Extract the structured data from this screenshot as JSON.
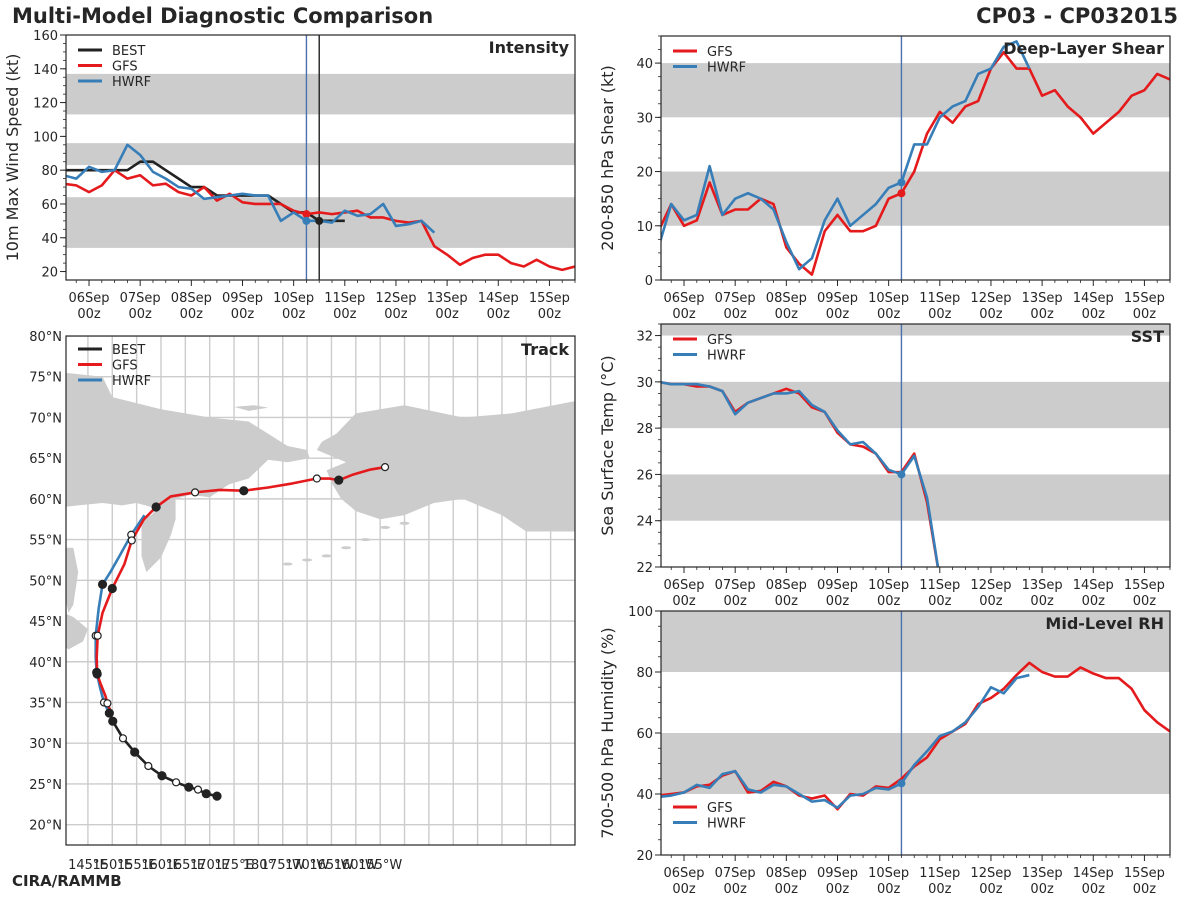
{
  "header": {
    "title": "Multi-Model Diagnostic Comparison",
    "storm_id": "CP03 - CP032015",
    "credit": "CIRA/RAMMB"
  },
  "colors": {
    "BEST": "#222222",
    "GFS": "#e41a1c",
    "HWRF": "#377eb8",
    "band": "#cccccc",
    "land": "#cccccc",
    "grid": "#cccccc"
  },
  "chart_data": [
    {
      "id": "intensity",
      "type": "line",
      "title": "Intensity",
      "ylabel": "10m Max Wind Speed (kt)",
      "xlabel": "",
      "ylim": [
        15,
        160
      ],
      "yticks": [
        20,
        40,
        60,
        80,
        100,
        120,
        140,
        160
      ],
      "bands": [
        [
          34,
          64
        ],
        [
          83,
          96
        ],
        [
          113,
          137
        ]
      ],
      "x_tick_labels": [
        [
          "06Sep",
          "00z"
        ],
        [
          "07Sep",
          "00z"
        ],
        [
          "08Sep",
          "00z"
        ],
        [
          "09Sep",
          "00z"
        ],
        [
          "10Sep",
          "00z"
        ],
        [
          "11Sep",
          "00z"
        ],
        [
          "12Sep",
          "00z"
        ],
        [
          "13Sep",
          "00z"
        ],
        [
          "14Sep",
          "00z"
        ],
        [
          "15Sep",
          "00z"
        ]
      ],
      "x_start": "05Sep 12z",
      "x_step_hours": 6,
      "vlines": [
        {
          "series": "HWRF",
          "at": "10Sep 06z"
        },
        {
          "series": "BEST",
          "at": "10Sep 12z"
        }
      ],
      "legend": [
        "BEST",
        "GFS",
        "HWRF"
      ],
      "legend_position": "top-left",
      "series": [
        {
          "name": "BEST",
          "values": [
            80,
            80,
            80,
            80,
            80,
            80,
            85,
            85,
            80,
            75,
            70,
            70,
            65,
            65,
            65,
            65,
            65,
            60,
            55,
            55,
            50,
            50,
            50
          ]
        },
        {
          "name": "GFS",
          "values": [
            72,
            71,
            67,
            71,
            80,
            75,
            77,
            71,
            72,
            67,
            65,
            70,
            62,
            66,
            61,
            60,
            60,
            60,
            56,
            54,
            55,
            54,
            55,
            56,
            52,
            52,
            50,
            49,
            50,
            35,
            30,
            24,
            28,
            30,
            30,
            25,
            23,
            27,
            23,
            21,
            23
          ]
        },
        {
          "name": "HWRF",
          "values": [
            77,
            75,
            82,
            79,
            80,
            95,
            89,
            79,
            75,
            70,
            69,
            63,
            64,
            65,
            66,
            65,
            65,
            50,
            55,
            50,
            50,
            49,
            56,
            53,
            54,
            60,
            47,
            48,
            50,
            43
          ]
        }
      ]
    },
    {
      "id": "shear",
      "type": "line",
      "title": "Deep-Layer Shear",
      "ylabel": "200-850 hPa Shear (kt)",
      "xlabel": "",
      "ylim": [
        0,
        45
      ],
      "yticks": [
        0,
        10,
        20,
        30,
        40
      ],
      "bands": [
        [
          10,
          20
        ],
        [
          30,
          40
        ]
      ],
      "x_tick_labels": [
        [
          "06Sep",
          "00z"
        ],
        [
          "07Sep",
          "00z"
        ],
        [
          "08Sep",
          "00z"
        ],
        [
          "09Sep",
          "00z"
        ],
        [
          "10Sep",
          "00z"
        ],
        [
          "11Sep",
          "00z"
        ],
        [
          "12Sep",
          "00z"
        ],
        [
          "13Sep",
          "00z"
        ],
        [
          "14Sep",
          "00z"
        ],
        [
          "15Sep",
          "00z"
        ]
      ],
      "x_start": "05Sep 12z",
      "x_step_hours": 6,
      "vlines": [
        {
          "series": "HWRF",
          "at": "10Sep 06z"
        }
      ],
      "legend": [
        "GFS",
        "HWRF"
      ],
      "legend_position": "top-left",
      "series": [
        {
          "name": "GFS",
          "values": [
            9,
            14,
            10,
            11,
            18,
            12,
            13,
            13,
            15,
            14,
            6,
            3,
            1,
            9,
            12,
            9,
            9,
            10,
            15,
            16,
            20,
            27,
            31,
            29,
            32,
            33,
            39,
            42,
            39,
            39,
            34,
            35,
            32,
            30,
            27,
            29,
            31,
            34,
            35,
            38,
            37
          ]
        },
        {
          "name": "HWRF",
          "values": [
            6,
            14,
            11,
            12,
            21,
            12,
            15,
            16,
            15,
            13,
            7,
            2,
            4,
            11,
            15,
            10,
            12,
            14,
            17,
            18,
            25,
            25,
            30,
            32,
            33,
            38,
            39,
            43,
            44,
            39
          ]
        }
      ]
    },
    {
      "id": "sst",
      "type": "line",
      "title": "SST",
      "ylabel": "Sea Surface Temp (°C)",
      "xlabel": "",
      "ylim": [
        22,
        32.5
      ],
      "yticks": [
        22,
        24,
        26,
        28,
        30,
        32
      ],
      "bands": [
        [
          24,
          26
        ],
        [
          28,
          30
        ],
        [
          32,
          33
        ]
      ],
      "x_tick_labels": [
        [
          "06Sep",
          "00z"
        ],
        [
          "07Sep",
          "00z"
        ],
        [
          "08Sep",
          "00z"
        ],
        [
          "09Sep",
          "00z"
        ],
        [
          "10Sep",
          "00z"
        ],
        [
          "11Sep",
          "00z"
        ],
        [
          "12Sep",
          "00z"
        ],
        [
          "13Sep",
          "00z"
        ],
        [
          "14Sep",
          "00z"
        ],
        [
          "15Sep",
          "00z"
        ]
      ],
      "x_start": "05Sep 12z",
      "x_step_hours": 6,
      "vlines": [
        {
          "series": "HWRF",
          "at": "10Sep 06z"
        }
      ],
      "legend": [
        "GFS",
        "HWRF"
      ],
      "legend_position": "top-left",
      "series": [
        {
          "name": "GFS",
          "values": [
            30.0,
            29.9,
            29.9,
            29.8,
            29.8,
            29.6,
            28.7,
            29.1,
            29.3,
            29.5,
            29.7,
            29.5,
            28.9,
            28.7,
            27.8,
            27.3,
            27.2,
            26.9,
            26.1,
            26.1,
            26.9,
            24.8,
            21.5
          ]
        },
        {
          "name": "HWRF",
          "values": [
            30.0,
            29.9,
            29.9,
            29.9,
            29.8,
            29.6,
            28.6,
            29.1,
            29.3,
            29.5,
            29.5,
            29.6,
            29.0,
            28.7,
            27.9,
            27.3,
            27.4,
            26.9,
            26.2,
            26.0,
            26.8,
            25.0,
            21.5
          ]
        }
      ]
    },
    {
      "id": "rh",
      "type": "line",
      "title": "Mid-Level RH",
      "ylabel": "700-500 hPa Humidity (%)",
      "xlabel": "",
      "ylim": [
        20,
        100
      ],
      "yticks": [
        20,
        40,
        60,
        80,
        100
      ],
      "bands": [
        [
          40,
          60
        ],
        [
          80,
          100
        ]
      ],
      "x_tick_labels": [
        [
          "06Sep",
          "00z"
        ],
        [
          "07Sep",
          "00z"
        ],
        [
          "08Sep",
          "00z"
        ],
        [
          "09Sep",
          "00z"
        ],
        [
          "10Sep",
          "00z"
        ],
        [
          "11Sep",
          "00z"
        ],
        [
          "12Sep",
          "00z"
        ],
        [
          "13Sep",
          "00z"
        ],
        [
          "14Sep",
          "00z"
        ],
        [
          "15Sep",
          "00z"
        ]
      ],
      "x_start": "05Sep 12z",
      "x_step_hours": 6,
      "vlines": [
        {
          "series": "HWRF",
          "at": "10Sep 06z"
        }
      ],
      "legend": [
        "GFS",
        "HWRF"
      ],
      "legend_position": "bottom-left",
      "series": [
        {
          "name": "GFS",
          "values": [
            39.5,
            40,
            40.5,
            42.5,
            43,
            46,
            47.5,
            40.5,
            41,
            44,
            42.5,
            39.5,
            38.5,
            39.5,
            35,
            40,
            39.5,
            42.5,
            42,
            45,
            49,
            52,
            58,
            60.5,
            63,
            69.5,
            71.5,
            74.5,
            79,
            83,
            80,
            78.5,
            78.5,
            81.5,
            79.5,
            78,
            78,
            74.5,
            67.5,
            63.5,
            60.5
          ]
        },
        {
          "name": "HWRF",
          "values": [
            39,
            39.5,
            40.5,
            43,
            42,
            46.5,
            47.5,
            41.5,
            40.5,
            43,
            42.5,
            40,
            37.5,
            38,
            35.5,
            39.5,
            40,
            42,
            41.5,
            43.5,
            49.5,
            54,
            59,
            60.5,
            63.5,
            68.5,
            75,
            73,
            78,
            79
          ]
        }
      ]
    },
    {
      "id": "track",
      "type": "scatter",
      "title": "Track",
      "xlabel": "",
      "ylabel": "",
      "xlim_lon": [
        140.5,
        245
      ],
      "ylim_lat": [
        17.5,
        80
      ],
      "lon_tick_labels": [
        "145°E",
        "150°E",
        "155°E",
        "160°E",
        "165°E",
        "170°E",
        "175°E",
        "180°",
        "175°W",
        "170°W",
        "165°W",
        "160°W",
        "155°W"
      ],
      "lat_tick_labels": [
        "20°N",
        "25°N",
        "30°N",
        "35°N",
        "40°N",
        "45°N",
        "50°N",
        "55°N",
        "60°N",
        "65°N",
        "70°N",
        "75°N",
        "80°N"
      ],
      "legend": [
        "BEST",
        "GFS",
        "HWRF"
      ],
      "legend_position": "top-left",
      "grid": true,
      "series": [
        {
          "name": "BEST",
          "lon": [
            171.5,
            169.3,
            167.6,
            165.7,
            163.1,
            160.2,
            157.4,
            154.6,
            152.2,
            150.1,
            149.5
          ],
          "lat": [
            23.5,
            23.8,
            24.3,
            24.6,
            25.2,
            26.0,
            27.2,
            28.9,
            30.6,
            32.7,
            33.6
          ],
          "markers": [
            "filled",
            "filled",
            "open",
            "filled",
            "open",
            "filled",
            "open",
            "filled",
            "open",
            "filled",
            "none"
          ]
        },
        {
          "name": "GFS",
          "lon": [
            149.6,
            149.0,
            148.6,
            147.6,
            146.9,
            146.8,
            147.0,
            148.0,
            150.0,
            152.5,
            154.0,
            156.5,
            159.0,
            162.0,
            167.0,
            172.0,
            177.0,
            182.0,
            187.0,
            192.0,
            194.5,
            196.5,
            199.5,
            203.0,
            206.0
          ],
          "lat": [
            34.0,
            34.9,
            35.8,
            37.3,
            38.5,
            40.5,
            43.2,
            46.0,
            49.0,
            52.0,
            54.9,
            57.5,
            59.0,
            60.3,
            60.8,
            61.1,
            61.0,
            61.4,
            61.9,
            62.5,
            62.5,
            62.3,
            63.0,
            63.6,
            63.9
          ],
          "markers": [
            "none",
            "open",
            "none",
            "none",
            "filled",
            "none",
            "open",
            "none",
            "filled",
            "none",
            "open",
            "none",
            "filled",
            "none",
            "open",
            "none",
            "filled",
            "none",
            "none",
            "open",
            "none",
            "filled",
            "none",
            "none",
            "open"
          ]
        },
        {
          "name": "HWRF",
          "lon": [
            149.4,
            148.3,
            147.5,
            146.8,
            146.6,
            146.6,
            147.2,
            148.0,
            149.6,
            151.5,
            153.9,
            156.6
          ],
          "lat": [
            33.7,
            35.0,
            36.8,
            38.7,
            40.5,
            43.2,
            46.5,
            49.5,
            51.0,
            53.0,
            55.6,
            58.0
          ],
          "markers": [
            "filled",
            "open",
            "none",
            "filled",
            "none",
            "open",
            "none",
            "filled",
            "none",
            "none",
            "open",
            "none"
          ]
        }
      ]
    }
  ]
}
